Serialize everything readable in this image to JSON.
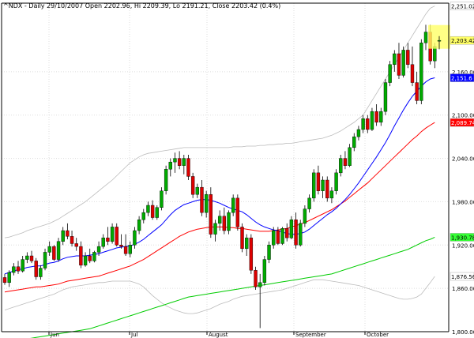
{
  "chart_data": {
    "type": "candlestick",
    "title": "^NDX - Daily 29/10/2007 Open 2202.96, Hi 2209.39, Lo 2191.21, Close 2203.42 (0.4%)",
    "x_labels": [
      "Jun",
      "Jul",
      "August",
      "September",
      "October"
    ],
    "y_ticks": [
      1800,
      1860,
      1920,
      1980,
      2040,
      2100,
      2160
    ],
    "y_tick_labels": [
      "1,800.00",
      "1,860.00",
      "1,920.00",
      "1,980.00",
      "2,040.00",
      "2,100.00",
      "2,160.00"
    ],
    "ylim": [
      1800,
      2255
    ],
    "grid": true,
    "price_badges": [
      {
        "label": "2,251.02",
        "value": 2251.02,
        "bg": "#ffffff",
        "fg": "#000000"
      },
      {
        "label": "2,203.42",
        "value": 2203.42,
        "bg": "#ffff66",
        "fg": "#000000"
      },
      {
        "label": "2,151.6",
        "value": 2151.6,
        "bg": "#0000ff",
        "fg": "#ffffff"
      },
      {
        "label": "2,089.74",
        "value": 2089.74,
        "bg": "#ff0000",
        "fg": "#ffffff"
      },
      {
        "label": "1,930.78",
        "value": 1930.78,
        "bg": "#33ff33",
        "fg": "#000000"
      },
      {
        "label": "1,876.56",
        "value": 1876.56,
        "bg": "#ffffff",
        "fg": "#000000"
      }
    ],
    "colors": {
      "up": "#00aa00",
      "down": "#dd0000",
      "wick": "#000000",
      "ma_fast": "#0000ff",
      "ma_mid": "#ff0000",
      "ma_slow": "#00cc00",
      "bands": "#bbbbbb",
      "grid": "#dddddd"
    },
    "candles": [
      [
        1875,
        1880,
        1865,
        1868
      ],
      [
        1868,
        1885,
        1862,
        1882
      ],
      [
        1882,
        1895,
        1878,
        1890
      ],
      [
        1890,
        1898,
        1880,
        1884
      ],
      [
        1884,
        1905,
        1882,
        1900
      ],
      [
        1900,
        1910,
        1895,
        1905
      ],
      [
        1905,
        1912,
        1895,
        1898
      ],
      [
        1898,
        1902,
        1872,
        1876
      ],
      [
        1876,
        1892,
        1872,
        1888
      ],
      [
        1888,
        1915,
        1885,
        1910
      ],
      [
        1910,
        1925,
        1905,
        1918
      ],
      [
        1918,
        1920,
        1898,
        1900
      ],
      [
        1900,
        1930,
        1897,
        1925
      ],
      [
        1925,
        1945,
        1920,
        1940
      ],
      [
        1940,
        1950,
        1928,
        1932
      ],
      [
        1932,
        1940,
        1918,
        1922
      ],
      [
        1922,
        1930,
        1912,
        1918
      ],
      [
        1918,
        1925,
        1888,
        1892
      ],
      [
        1892,
        1910,
        1890,
        1905
      ],
      [
        1905,
        1915,
        1895,
        1898
      ],
      [
        1898,
        1912,
        1896,
        1910
      ],
      [
        1910,
        1925,
        1905,
        1918
      ],
      [
        1918,
        1935,
        1915,
        1930
      ],
      [
        1930,
        1945,
        1920,
        1925
      ],
      [
        1925,
        1950,
        1922,
        1945
      ],
      [
        1945,
        1950,
        1918,
        1920
      ],
      [
        1920,
        1935,
        1915,
        1918
      ],
      [
        1918,
        1935,
        1905,
        1908
      ],
      [
        1908,
        1925,
        1903,
        1920
      ],
      [
        1920,
        1945,
        1915,
        1940
      ],
      [
        1940,
        1960,
        1935,
        1955
      ],
      [
        1955,
        1970,
        1950,
        1965
      ],
      [
        1965,
        1980,
        1960,
        1975
      ],
      [
        1975,
        1982,
        1955,
        1958
      ],
      [
        1958,
        1975,
        1955,
        1972
      ],
      [
        1972,
        2000,
        1968,
        1995
      ],
      [
        1995,
        2030,
        1990,
        2025
      ],
      [
        2025,
        2040,
        2015,
        2035
      ],
      [
        2035,
        2048,
        2020,
        2040
      ],
      [
        2040,
        2050,
        2025,
        2030
      ],
      [
        2030,
        2045,
        2018,
        2040
      ],
      [
        2040,
        2045,
        2010,
        2015
      ],
      [
        2015,
        2020,
        1985,
        1990
      ],
      [
        1990,
        2005,
        1985,
        2000
      ],
      [
        2000,
        2010,
        1960,
        1965
      ],
      [
        1965,
        1995,
        1958,
        1990
      ],
      [
        1990,
        2000,
        1930,
        1935
      ],
      [
        1935,
        1955,
        1925,
        1950
      ],
      [
        1950,
        1968,
        1940,
        1960
      ],
      [
        1960,
        1972,
        1935,
        1940
      ],
      [
        1940,
        1968,
        1935,
        1965
      ],
      [
        1965,
        1990,
        1960,
        1985
      ],
      [
        1985,
        1990,
        1940,
        1945
      ],
      [
        1945,
        1950,
        1910,
        1915
      ],
      [
        1915,
        1935,
        1905,
        1930
      ],
      [
        1930,
        1935,
        1880,
        1885
      ],
      [
        1885,
        1890,
        1858,
        1862
      ],
      [
        1862,
        1880,
        1805,
        1868
      ],
      [
        1868,
        1905,
        1864,
        1900
      ],
      [
        1900,
        1925,
        1895,
        1920
      ],
      [
        1920,
        1945,
        1915,
        1940
      ],
      [
        1940,
        1945,
        1920,
        1922
      ],
      [
        1922,
        1945,
        1920,
        1943
      ],
      [
        1943,
        1950,
        1925,
        1930
      ],
      [
        1930,
        1960,
        1928,
        1955
      ],
      [
        1955,
        1965,
        1915,
        1920
      ],
      [
        1920,
        1955,
        1918,
        1950
      ],
      [
        1950,
        1975,
        1945,
        1970
      ],
      [
        1970,
        1990,
        1965,
        1985
      ],
      [
        1985,
        2025,
        1980,
        2020
      ],
      [
        2020,
        2030,
        1990,
        1995
      ],
      [
        1995,
        2015,
        1985,
        2010
      ],
      [
        2010,
        2015,
        1980,
        1985
      ],
      [
        1985,
        2000,
        1978,
        1995
      ],
      [
        1995,
        2025,
        1990,
        2020
      ],
      [
        2020,
        2045,
        2015,
        2040
      ],
      [
        2040,
        2050,
        2025,
        2030
      ],
      [
        2030,
        2060,
        2028,
        2055
      ],
      [
        2055,
        2075,
        2050,
        2070
      ],
      [
        2070,
        2085,
        2065,
        2080
      ],
      [
        2080,
        2100,
        2075,
        2095
      ],
      [
        2095,
        2100,
        2075,
        2080
      ],
      [
        2080,
        2110,
        2078,
        2105
      ],
      [
        2105,
        2115,
        2085,
        2090
      ],
      [
        2090,
        2110,
        2085,
        2105
      ],
      [
        2105,
        2150,
        2100,
        2145
      ],
      [
        2145,
        2175,
        2140,
        2170
      ],
      [
        2170,
        2190,
        2160,
        2185
      ],
      [
        2185,
        2200,
        2150,
        2155
      ],
      [
        2155,
        2195,
        2152,
        2190
      ],
      [
        2190,
        2200,
        2165,
        2170
      ],
      [
        2170,
        2195,
        2140,
        2145
      ],
      [
        2145,
        2160,
        2115,
        2120
      ],
      [
        2120,
        2205,
        2115,
        2200
      ],
      [
        2200,
        2225,
        2190,
        2215
      ],
      [
        2215,
        2225,
        2170,
        2175
      ],
      [
        2175,
        2200,
        2165,
        2195
      ],
      [
        2202.96,
        2209.39,
        2191.21,
        2203.42
      ]
    ],
    "ma_fast": [
      1880,
      1882,
      1884,
      1886,
      1887,
      1889,
      1890,
      1891,
      1891,
      1893,
      1895,
      1896,
      1898,
      1901,
      1903,
      1904,
      1905,
      1905,
      1905,
      1906,
      1907,
      1908,
      1910,
      1912,
      1914,
      1916,
      1917,
      1918,
      1919,
      1921,
      1924,
      1928,
      1933,
      1938,
      1943,
      1948,
      1955,
      1962,
      1968,
      1972,
      1976,
      1978,
      1980,
      1982,
      1983,
      1983,
      1982,
      1980,
      1978,
      1975,
      1972,
      1970,
      1968,
      1966,
      1962,
      1957,
      1952,
      1948,
      1945,
      1943,
      1941,
      1940,
      1938,
      1936,
      1935,
      1935,
      1936,
      1938,
      1942,
      1947,
      1952,
      1957,
      1962,
      1966,
      1971,
      1977,
      1983,
      1990,
      1998,
      2006,
      2015,
      2024,
      2033,
      2042,
      2052,
      2062,
      2073,
      2085,
      2096,
      2107,
      2117,
      2126,
      2133,
      2140,
      2146,
      2150,
      2151.6
    ],
    "ma_mid": [
      1855,
      1856,
      1857,
      1858,
      1859,
      1860,
      1861,
      1862,
      1862,
      1863,
      1864,
      1865,
      1866,
      1868,
      1870,
      1871,
      1872,
      1873,
      1874,
      1875,
      1876,
      1877,
      1879,
      1881,
      1883,
      1885,
      1887,
      1889,
      1891,
      1894,
      1897,
      1900,
      1904,
      1908,
      1912,
      1916,
      1920,
      1924,
      1928,
      1932,
      1935,
      1938,
      1940,
      1942,
      1943,
      1944,
      1945,
      1945,
      1945,
      1945,
      1944,
      1944,
      1943,
      1943,
      1942,
      1941,
      1940,
      1939,
      1939,
      1939,
      1940,
      1941,
      1942,
      1943,
      1945,
      1947,
      1949,
      1951,
      1954,
      1957,
      1960,
      1963,
      1966,
      1969,
      1973,
      1977,
      1981,
      1986,
      1991,
      1996,
      2001,
      2006,
      2012,
      2018,
      2024,
      2030,
      2036,
      2042,
      2048,
      2054,
      2060,
      2066,
      2071,
      2077,
      2082,
      2086,
      2089.74
    ],
    "ma_slow": [
      1785,
      1786,
      1787,
      1788,
      1789,
      1790,
      1791,
      1792,
      1793,
      1794,
      1795,
      1796,
      1797,
      1798,
      1799,
      1800,
      1801,
      1802,
      1803,
      1804,
      1806,
      1808,
      1810,
      1812,
      1814,
      1816,
      1818,
      1820,
      1822,
      1824,
      1826,
      1828,
      1830,
      1832,
      1834,
      1836,
      1838,
      1840,
      1842,
      1844,
      1846,
      1848,
      1849,
      1850,
      1851,
      1852,
      1853,
      1854,
      1855,
      1856,
      1857,
      1858,
      1859,
      1860,
      1861,
      1862,
      1863,
      1864,
      1865,
      1866,
      1867,
      1868,
      1869,
      1870,
      1871,
      1872,
      1873,
      1874,
      1875,
      1876,
      1877,
      1878,
      1879,
      1880,
      1882,
      1884,
      1886,
      1888,
      1890,
      1892,
      1894,
      1896,
      1898,
      1900,
      1902,
      1904,
      1906,
      1908,
      1910,
      1912,
      1914,
      1917,
      1920,
      1923,
      1926,
      1928,
      1930.78
    ],
    "band_upper": [
      1930,
      1931,
      1933,
      1935,
      1937,
      1940,
      1942,
      1944,
      1946,
      1948,
      1950,
      1953,
      1956,
      1960,
      1964,
      1968,
      1972,
      1976,
      1980,
      1985,
      1990,
      1995,
      2000,
      2005,
      2010,
      2016,
      2022,
      2028,
      2034,
      2038,
      2042,
      2045,
      2047,
      2048,
      2049,
      2050,
      2051,
      2052,
      2053,
      2054,
      2055,
      2055,
      2055,
      2055,
      2055,
      2055,
      2055,
      2055,
      2055,
      2055,
      2055,
      2056,
      2056,
      2056,
      2057,
      2057,
      2057,
      2058,
      2058,
      2059,
      2059,
      2060,
      2060,
      2061,
      2061,
      2062,
      2063,
      2064,
      2065,
      2066,
      2067,
      2068,
      2070,
      2072,
      2075,
      2078,
      2082,
      2086,
      2090,
      2095,
      2100,
      2110,
      2120,
      2130,
      2140,
      2150,
      2160,
      2170,
      2180,
      2190,
      2200,
      2210,
      2220,
      2230,
      2240,
      2248,
      2251.02
    ],
    "band_lower": [
      1830,
      1832,
      1834,
      1836,
      1838,
      1840,
      1842,
      1844,
      1846,
      1848,
      1850,
      1852,
      1855,
      1858,
      1860,
      1862,
      1863,
      1864,
      1865,
      1866,
      1867,
      1868,
      1868,
      1869,
      1870,
      1870,
      1870,
      1870,
      1870,
      1868,
      1866,
      1862,
      1856,
      1850,
      1845,
      1840,
      1836,
      1833,
      1830,
      1828,
      1826,
      1825,
      1825,
      1826,
      1828,
      1830,
      1832,
      1835,
      1838,
      1840,
      1842,
      1845,
      1847,
      1849,
      1850,
      1851,
      1852,
      1853,
      1854,
      1855,
      1856,
      1857,
      1858,
      1860,
      1862,
      1864,
      1866,
      1868,
      1870,
      1872,
      1872,
      1872,
      1871,
      1870,
      1869,
      1868,
      1867,
      1866,
      1865,
      1864,
      1862,
      1860,
      1858,
      1856,
      1854,
      1852,
      1850,
      1848,
      1846,
      1845,
      1845,
      1846,
      1848,
      1852,
      1860,
      1868,
      1876.56
    ]
  }
}
